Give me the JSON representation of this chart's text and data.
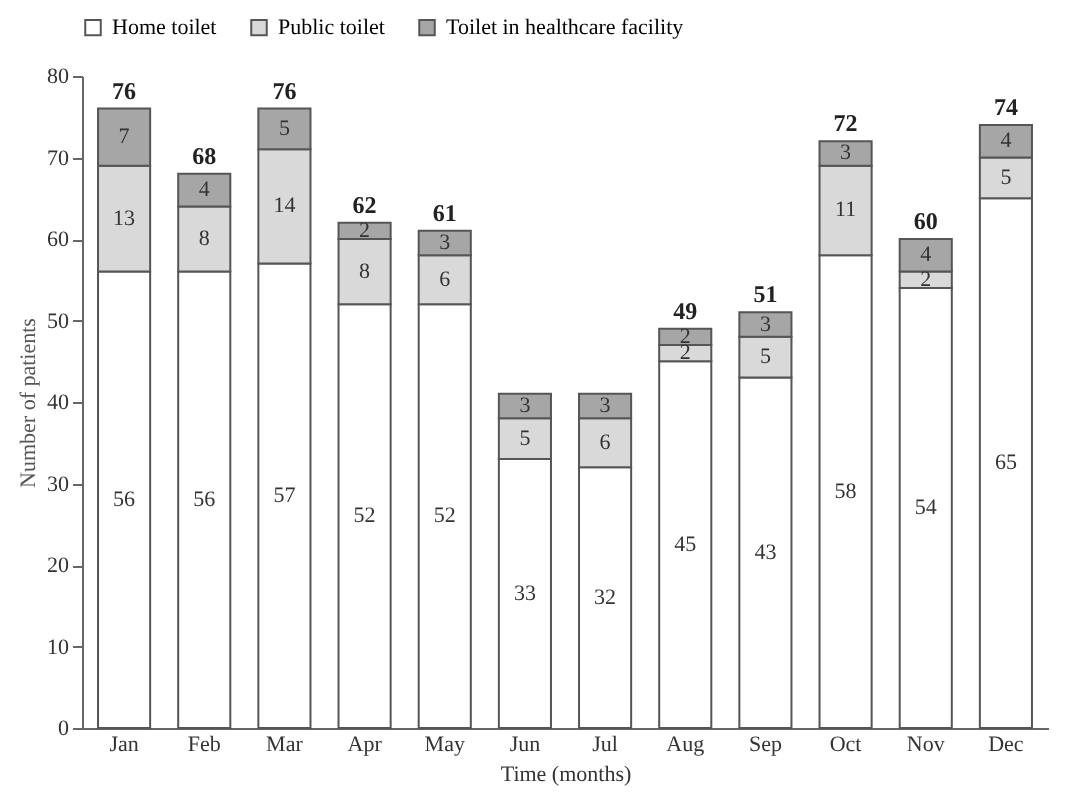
{
  "chart_data": {
    "type": "bar",
    "stacked": true,
    "xlabel": "Time (months)",
    "ylabel": "Number of patients",
    "categories": [
      "Jan",
      "Feb",
      "Mar",
      "Apr",
      "May",
      "Jun",
      "Jul",
      "Aug",
      "Sep",
      "Oct",
      "Nov",
      "Dec"
    ],
    "series": [
      {
        "name": "Home toilet",
        "color": "#ffffff",
        "values": [
          56,
          56,
          57,
          52,
          52,
          33,
          32,
          45,
          43,
          58,
          54,
          65
        ]
      },
      {
        "name": "Public toilet",
        "color": "#d9d9d9",
        "values": [
          13,
          8,
          14,
          8,
          6,
          5,
          6,
          2,
          5,
          11,
          2,
          5
        ]
      },
      {
        "name": "Toilet in healthcare facility",
        "color": "#a6a6a6",
        "values": [
          7,
          4,
          5,
          2,
          3,
          3,
          3,
          2,
          3,
          3,
          4,
          4
        ]
      }
    ],
    "totals": [
      "76",
      "68",
      "76",
      "62",
      "61",
      null,
      null,
      "49",
      "51",
      "72",
      "60",
      "74"
    ],
    "data_labels": true,
    "ylim": [
      0,
      80
    ],
    "yticks": [
      0,
      10,
      20,
      30,
      40,
      50,
      60,
      70,
      80
    ],
    "legend": "top",
    "grid": false
  }
}
